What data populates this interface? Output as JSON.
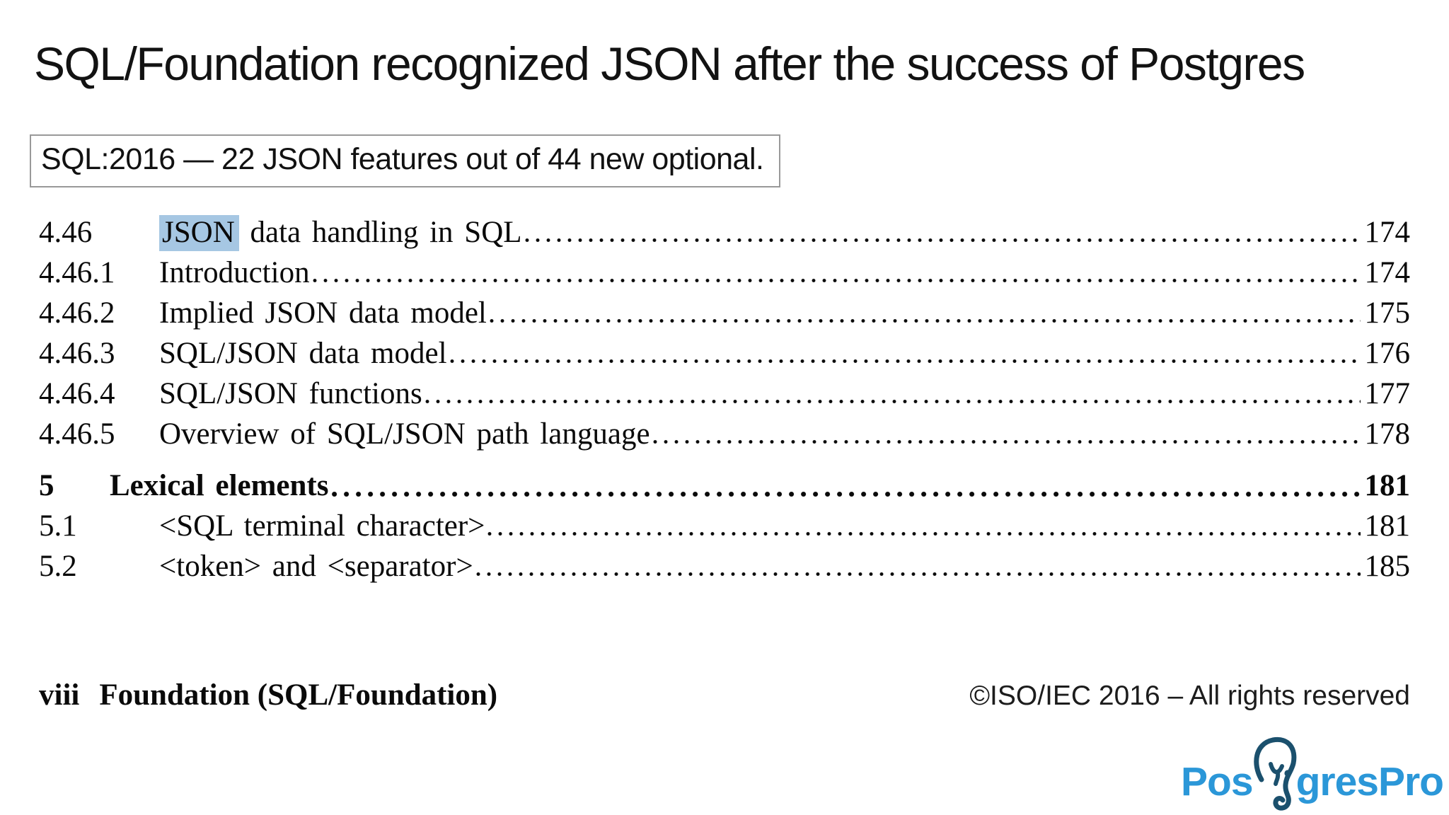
{
  "slide": {
    "title": "SQL/Foundation recognized JSON after the success of Postgres",
    "callout": "SQL:2016 — 22 JSON features out of 44 new optional."
  },
  "toc": {
    "highlight_term": "JSON",
    "entries": [
      {
        "num": "4.46",
        "hl": "JSON",
        "title": " data handling in SQL",
        "page": "174",
        "bold": false
      },
      {
        "num": "4.46.1",
        "hl": "",
        "title": "Introduction",
        "page": "174",
        "bold": false
      },
      {
        "num": "4.46.2",
        "hl": "",
        "title": "Implied JSON data model",
        "page": "175",
        "bold": false
      },
      {
        "num": "4.46.3",
        "hl": "",
        "title": "SQL/JSON data model",
        "page": "176",
        "bold": false
      },
      {
        "num": "4.46.4",
        "hl": "",
        "title": "SQL/JSON functions",
        "page": "177",
        "bold": false
      },
      {
        "num": "4.46.5",
        "hl": "",
        "title": "Overview of SQL/JSON path language",
        "page": "178",
        "bold": false
      },
      {
        "num": "5",
        "hl": "",
        "title": "Lexical elements",
        "page": "181",
        "bold": true
      },
      {
        "num": "5.1",
        "hl": "",
        "title": "<SQL terminal character>",
        "page": "181",
        "bold": false
      },
      {
        "num": "5.2",
        "hl": "",
        "title": "<token> and <separator>",
        "page": "185",
        "bold": false
      }
    ]
  },
  "footer": {
    "page_label": "viii",
    "doc_title": "Foundation (SQL/Foundation)",
    "copyright": "©ISO/IEC 2016 – All rights reserved"
  },
  "logo": {
    "text_before": "Pos",
    "text_after": "gresPro",
    "brand": "PostgresPro"
  },
  "colors": {
    "highlight": "#a6c7e3",
    "logo_text": "#2b97d8",
    "logo_elephant": "#1b506d"
  }
}
